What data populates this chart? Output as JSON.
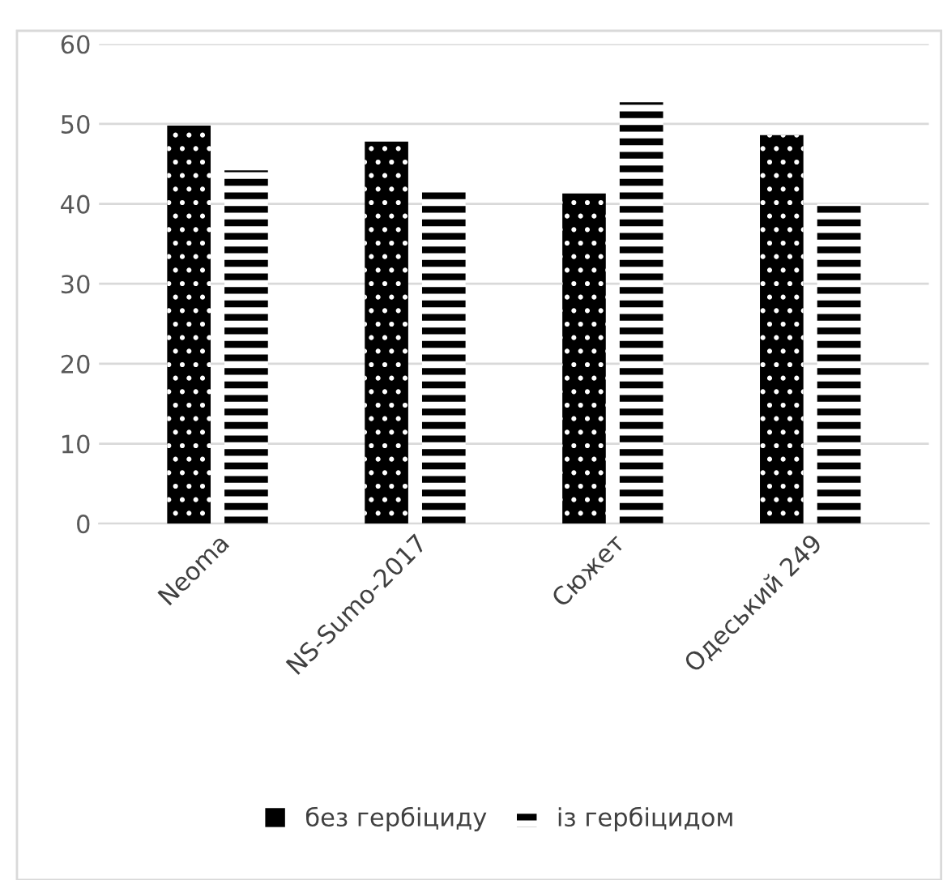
{
  "chart_data": {
    "type": "bar",
    "categories": [
      "Neoma",
      "NS-Sumo-2017",
      "Сюжет",
      "Одеський 249"
    ],
    "series": [
      {
        "name": "без гербіциду",
        "color": "#000000",
        "values": [
          49.8,
          47.8,
          41.3,
          48.6
        ]
      },
      {
        "name": "із гербіцидом",
        "color": "#000000",
        "values": [
          44.2,
          41.8,
          52.7,
          40.0
        ]
      }
    ],
    "ylim": [
      0,
      60
    ],
    "yticks": [
      0,
      10,
      20,
      30,
      40,
      50,
      60
    ],
    "grid": "y",
    "legend": "bottom"
  }
}
